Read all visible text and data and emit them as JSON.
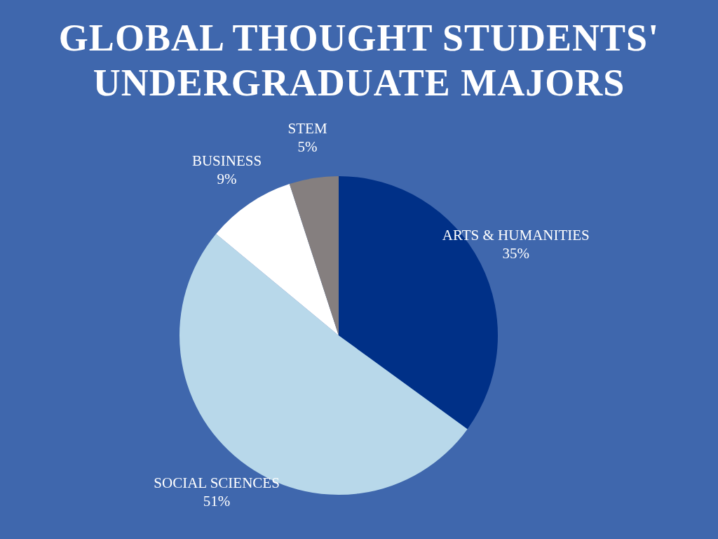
{
  "chart_data": {
    "type": "pie",
    "title": "GLOBAL THOUGHT STUDENTS' UNDERGRADUATE MAJORS",
    "categories": [
      "ARTS & HUMANITIES",
      "SOCIAL SCIENCES",
      "BUSINESS",
      "STEM"
    ],
    "values": [
      35,
      51,
      9,
      5
    ],
    "colors": [
      "#003087",
      "#b8d8ea",
      "#ffffff",
      "#857f7f"
    ],
    "value_labels": [
      "35%",
      "51%",
      "9%",
      "5%"
    ],
    "legend": false
  }
}
